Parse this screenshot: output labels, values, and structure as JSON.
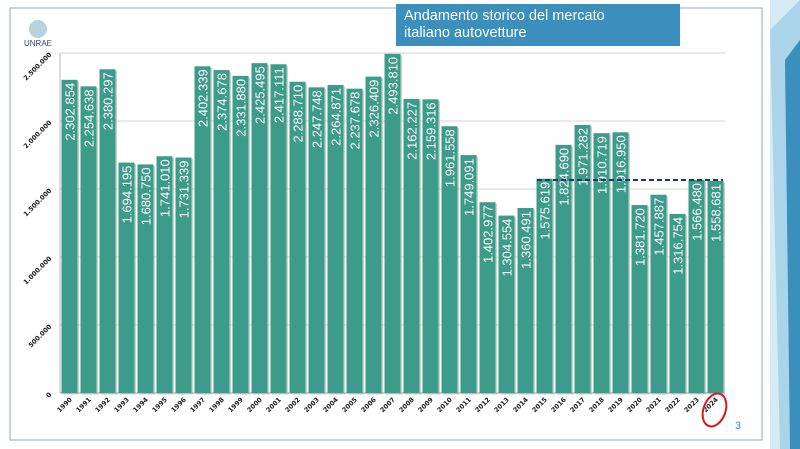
{
  "header": {
    "title_line1": "Andamento storico del mercato",
    "title_line2": "italiano autovetture"
  },
  "logo": {
    "text": "UNRAE"
  },
  "page_number": "3",
  "colors": {
    "bar": "#3d9b8a",
    "title_bg": "#3a8fbc",
    "dashed_line": "#1f3864",
    "highlight_circle": "#e0141e"
  },
  "chart_data": {
    "type": "bar",
    "title": "",
    "xlabel": "",
    "ylabel": "",
    "ylim": [
      0,
      2500000
    ],
    "yticks": [
      0,
      500000,
      1000000,
      1500000,
      2000000,
      2500000
    ],
    "ytick_labels": [
      "0",
      "500.000",
      "1.000.000",
      "1.500.000",
      "2.000.000",
      "2.500.000"
    ],
    "grid": true,
    "categories": [
      "1990",
      "1991",
      "1992",
      "1993",
      "1994",
      "1995",
      "1996",
      "1997",
      "1998",
      "1999",
      "2000",
      "2001",
      "2002",
      "2003",
      "2004",
      "2005",
      "2006",
      "2007",
      "2008",
      "2009",
      "2010",
      "2011",
      "2012",
      "2013",
      "2014",
      "2015",
      "2016",
      "2017",
      "2018",
      "2019",
      "2020",
      "2021",
      "2022",
      "2023",
      "2024"
    ],
    "values": [
      2302854,
      2254638,
      2380297,
      1694195,
      1680750,
      1741010,
      1731339,
      2402339,
      2374678,
      2331880,
      2425495,
      2417111,
      2288710,
      2247748,
      2264871,
      2237678,
      2326409,
      2493810,
      2162227,
      2159316,
      1961558,
      1749091,
      1402977,
      1304554,
      1360491,
      1575619,
      1824690,
      1971282,
      1910719,
      1916950,
      1381720,
      1457887,
      1316754,
      1566480,
      1558681
    ],
    "value_labels": [
      "2.302.854",
      "2.254.638",
      "2.380.297",
      "1.694.195",
      "1.680.750",
      "1.741.010",
      "1.731.339",
      "2.402.339",
      "2.374.678",
      "2.331.880",
      "2.425.495",
      "2.417.111",
      "2.288.710",
      "2.247.748",
      "2.264.871",
      "2.237.678",
      "2.326.409",
      "2.493.810",
      "2.162.227",
      "2.159.316",
      "1.961.558",
      "1.749.091",
      "1.402.977",
      "1.304.554",
      "1.360.491",
      "1.575.619",
      "1.824.690",
      "1.971.282",
      "1.910.719",
      "1.916.950",
      "1.381.720",
      "1.457.887",
      "1.316.754",
      "1.566.480",
      "1.558.681"
    ],
    "annotations": {
      "dashed_reference_from": "2015",
      "dashed_reference_to": "2024",
      "dashed_reference_value": 1566480,
      "circled_category": "2024"
    }
  }
}
